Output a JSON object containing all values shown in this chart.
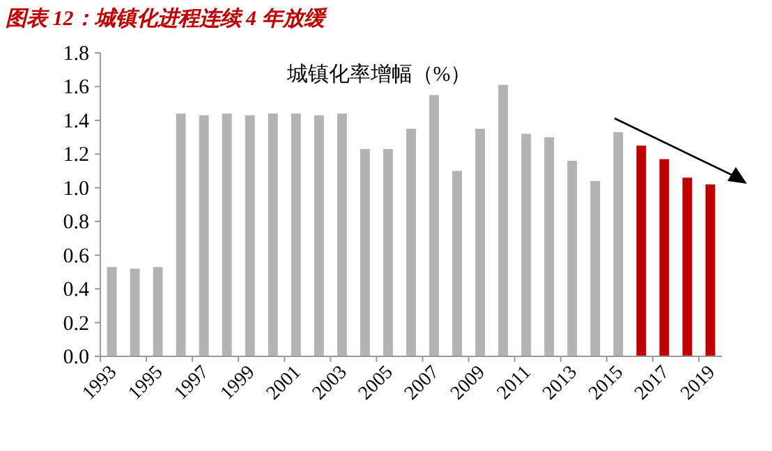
{
  "chart_data": {
    "type": "bar",
    "title": "图表 12：城镇化进程连续 4 年放缓",
    "annotations": [
      "城镇化率增幅（%）"
    ],
    "categories": [
      "1993",
      null,
      "1995",
      null,
      "1997",
      null,
      "1999",
      null,
      "2001",
      null,
      "2003",
      null,
      "2005",
      null,
      "2007",
      null,
      "2009",
      null,
      "2011",
      null,
      "2013",
      null,
      "2015",
      null,
      "2017",
      null,
      "2019"
    ],
    "values": [
      0.53,
      0.52,
      0.53,
      1.44,
      1.43,
      1.44,
      1.43,
      1.44,
      1.44,
      1.43,
      1.44,
      1.23,
      1.23,
      1.35,
      1.55,
      1.1,
      1.35,
      1.61,
      1.32,
      1.3,
      1.16,
      1.04,
      1.33,
      1.25,
      1.17,
      1.06,
      1.02
    ],
    "colors": [
      "#b3b3b3",
      "#b3b3b3",
      "#b3b3b3",
      "#b3b3b3",
      "#b3b3b3",
      "#b3b3b3",
      "#b3b3b3",
      "#b3b3b3",
      "#b3b3b3",
      "#b3b3b3",
      "#b3b3b3",
      "#b3b3b3",
      "#b3b3b3",
      "#b3b3b3",
      "#b3b3b3",
      "#b3b3b3",
      "#b3b3b3",
      "#b3b3b3",
      "#b3b3b3",
      "#b3b3b3",
      "#b3b3b3",
      "#b3b3b3",
      "#b3b3b3",
      "#c00000",
      "#c00000",
      "#c00000",
      "#c00000"
    ],
    "ylim": [
      0,
      1.8
    ],
    "yticks": [
      {
        "value": 0,
        "label": "0.0"
      },
      {
        "value": 0.2,
        "label": "0.2"
      },
      {
        "value": 0.4,
        "label": "0.4"
      },
      {
        "value": 0.6,
        "label": "0.6"
      },
      {
        "value": 0.8,
        "label": "0.8"
      },
      {
        "value": 1.0,
        "label": "1.0"
      },
      {
        "value": 1.2,
        "label": "1.2"
      },
      {
        "value": 1.4,
        "label": "1.4"
      },
      {
        "value": 1.6,
        "label": "1.6"
      },
      {
        "value": 1.8,
        "label": "1.8"
      }
    ],
    "grid": false
  }
}
